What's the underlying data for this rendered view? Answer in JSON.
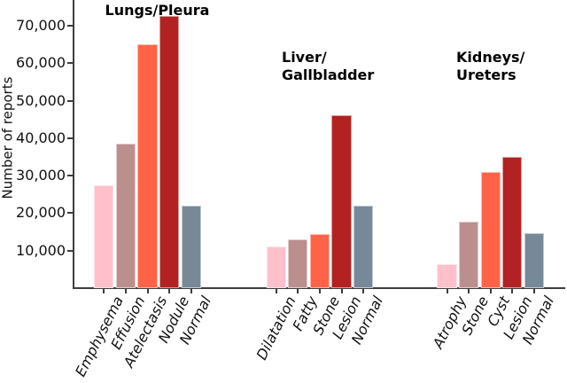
{
  "chart_data": {
    "type": "bar",
    "title": "",
    "xlabel": "",
    "ylabel": "Number of reports",
    "ylim": [
      0,
      76800
    ],
    "grid": false,
    "legend": "none",
    "ytick_values": [
      10000,
      20000,
      30000,
      40000,
      50000,
      60000,
      70000
    ],
    "ytick_labels": [
      "10,000",
      "20,000",
      "30,000",
      "40,000",
      "50,000",
      "60,000",
      "70,000"
    ],
    "bar_colors": [
      "#ffc0cb",
      "#bc8f8f",
      "#ff6347",
      "#b22222",
      "#778899"
    ],
    "bar_color_names": [
      "pink",
      "rosybrown",
      "tomato",
      "firebrick",
      "lightslategray"
    ],
    "groups": [
      {
        "title": "Lungs/Pleura",
        "title_lines": [
          "Lungs/Pleura"
        ],
        "categories": [
          "Emphysema",
          "Effusion",
          "Atelectasis",
          "Nodule",
          "Normal"
        ],
        "values": [
          27500,
          38500,
          65000,
          72500,
          22000
        ]
      },
      {
        "title": "Liver/Gallbladder",
        "title_lines": [
          "Liver/",
          "Gallbladder"
        ],
        "categories": [
          "Dilatation",
          "Fatty",
          "Stone",
          "Lesion",
          "Normal"
        ],
        "values": [
          11000,
          13000,
          14500,
          46000,
          22000
        ]
      },
      {
        "title": "Kidneys/Ureters",
        "title_lines": [
          "Kidneys/",
          "Ureters"
        ],
        "categories": [
          "Atrophy",
          "Stone",
          "Cyst",
          "Lesion",
          "Normal"
        ],
        "values": [
          6300,
          17800,
          31000,
          35000,
          14700
        ]
      }
    ]
  }
}
